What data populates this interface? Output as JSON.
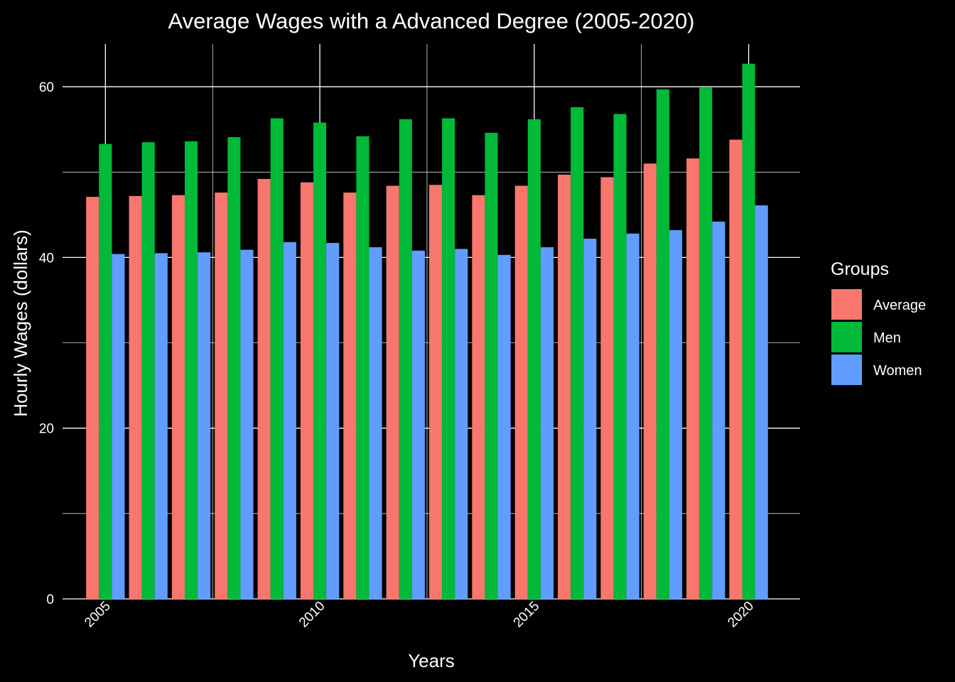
{
  "chart_data": {
    "type": "bar",
    "title": "Average Wages with a Advanced Degree (2005-2020)",
    "xlabel": "Years",
    "ylabel": "Hourly Wages (dollars)",
    "x": [
      2005,
      2006,
      2007,
      2008,
      2009,
      2010,
      2011,
      2012,
      2013,
      2014,
      2015,
      2016,
      2017,
      2018,
      2019,
      2020
    ],
    "x_ticks": [
      2005,
      2010,
      2015,
      2020
    ],
    "y_ticks": [
      0,
      20,
      40,
      60
    ],
    "ylim": [
      0,
      65
    ],
    "xlim": [
      2004.0,
      2021.2
    ],
    "grid": true,
    "legend_title": "Groups",
    "legend_position": "right",
    "series": [
      {
        "name": "Average",
        "color": "#F8766D",
        "values": [
          47.1,
          47.2,
          47.3,
          47.6,
          49.2,
          48.8,
          47.6,
          48.4,
          48.5,
          47.3,
          48.4,
          49.7,
          49.4,
          51.0,
          51.6,
          53.8
        ]
      },
      {
        "name": "Men",
        "color": "#00BA38",
        "values": [
          53.3,
          53.5,
          53.6,
          54.1,
          56.3,
          55.8,
          54.2,
          56.2,
          56.3,
          54.6,
          56.2,
          57.6,
          56.8,
          59.7,
          59.9,
          62.7
        ]
      },
      {
        "name": "Women",
        "color": "#619CFF",
        "values": [
          40.4,
          40.5,
          40.6,
          40.9,
          41.8,
          41.7,
          41.2,
          40.8,
          41.0,
          40.3,
          41.2,
          42.2,
          42.8,
          43.2,
          44.2,
          46.1
        ]
      }
    ]
  }
}
